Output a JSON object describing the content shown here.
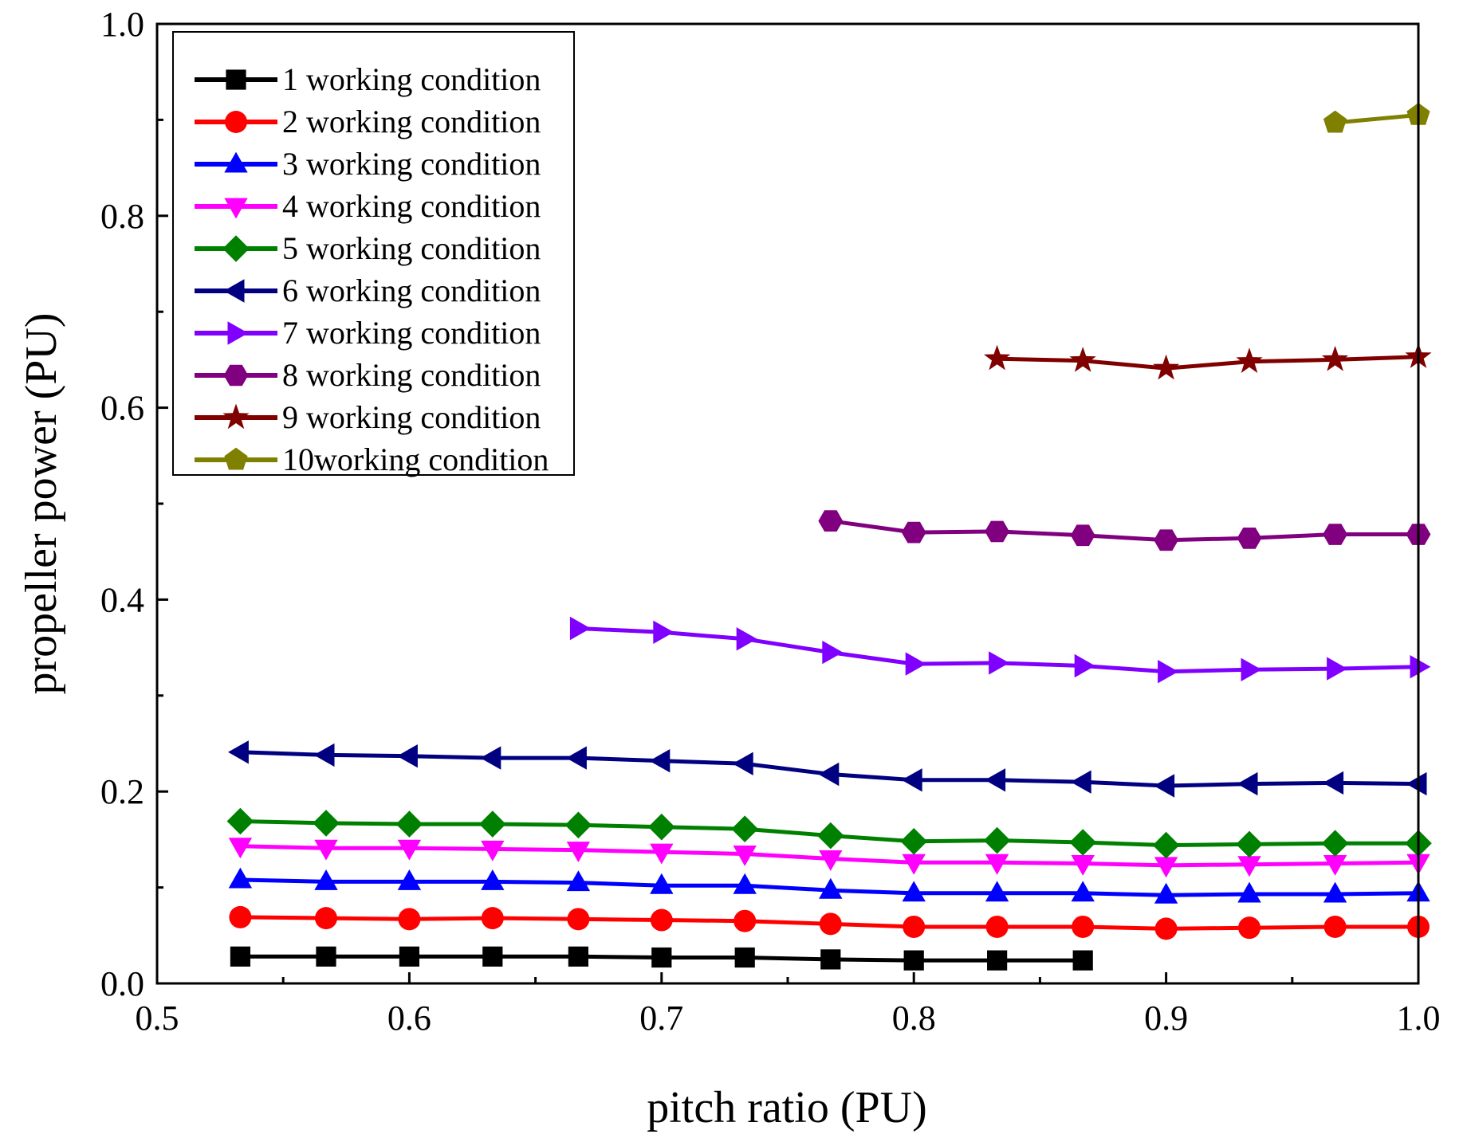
{
  "chart_data": {
    "type": "line",
    "title": "",
    "xlabel": "pitch ratio (PU)",
    "ylabel": "propeller power (PU)",
    "xlim": [
      0.5,
      1.0
    ],
    "ylim": [
      0.0,
      1.0
    ],
    "xticks": [
      0.5,
      0.6,
      0.7,
      0.8,
      0.9,
      1.0
    ],
    "xtick_labels": [
      "0.5",
      "0.6",
      "0.7",
      "0.8",
      "0.9",
      "1.0"
    ],
    "yticks": [
      0.0,
      0.2,
      0.4,
      0.6,
      0.8,
      1.0
    ],
    "ytick_labels": [
      "0.0",
      "0.2",
      "0.4",
      "0.6",
      "0.8",
      "1.0"
    ],
    "legend_position": "top-left",
    "grid": false,
    "series": [
      {
        "name": "1 working condition",
        "color": "#000000",
        "marker": "square",
        "x": [
          0.533,
          0.567,
          0.6,
          0.633,
          0.667,
          0.7,
          0.733,
          0.767,
          0.8,
          0.833,
          0.867
        ],
        "values": [
          0.028,
          0.028,
          0.028,
          0.028,
          0.028,
          0.027,
          0.027,
          0.025,
          0.024,
          0.024,
          0.024
        ]
      },
      {
        "name": "2 working condition",
        "color": "#ff0000",
        "marker": "circle",
        "x": [
          0.533,
          0.567,
          0.6,
          0.633,
          0.667,
          0.7,
          0.733,
          0.767,
          0.8,
          0.833,
          0.867,
          0.9,
          0.933,
          0.967,
          1.0
        ],
        "values": [
          0.069,
          0.068,
          0.067,
          0.068,
          0.067,
          0.066,
          0.065,
          0.062,
          0.059,
          0.059,
          0.059,
          0.057,
          0.058,
          0.059,
          0.059
        ]
      },
      {
        "name": "3 working condition",
        "color": "#0000ff",
        "marker": "triangle-up",
        "x": [
          0.533,
          0.567,
          0.6,
          0.633,
          0.667,
          0.7,
          0.733,
          0.767,
          0.8,
          0.833,
          0.867,
          0.9,
          0.933,
          0.967,
          1.0
        ],
        "values": [
          0.108,
          0.106,
          0.106,
          0.106,
          0.105,
          0.102,
          0.102,
          0.097,
          0.094,
          0.094,
          0.094,
          0.092,
          0.093,
          0.093,
          0.094
        ]
      },
      {
        "name": "4 working condition",
        "color": "#ff00ff",
        "marker": "triangle-down",
        "x": [
          0.533,
          0.567,
          0.6,
          0.633,
          0.667,
          0.7,
          0.733,
          0.767,
          0.8,
          0.833,
          0.867,
          0.9,
          0.933,
          0.967,
          1.0
        ],
        "values": [
          0.143,
          0.141,
          0.141,
          0.14,
          0.139,
          0.137,
          0.135,
          0.13,
          0.126,
          0.126,
          0.125,
          0.123,
          0.124,
          0.125,
          0.126
        ]
      },
      {
        "name": "5 working condition",
        "color": "#008000",
        "marker": "diamond",
        "x": [
          0.533,
          0.567,
          0.6,
          0.633,
          0.667,
          0.7,
          0.733,
          0.767,
          0.8,
          0.833,
          0.867,
          0.9,
          0.933,
          0.967,
          1.0
        ],
        "values": [
          0.169,
          0.167,
          0.166,
          0.166,
          0.165,
          0.163,
          0.161,
          0.154,
          0.148,
          0.149,
          0.147,
          0.144,
          0.145,
          0.146,
          0.146
        ]
      },
      {
        "name": "6 working condition",
        "color": "#000080",
        "marker": "triangle-left",
        "x": [
          0.533,
          0.567,
          0.6,
          0.633,
          0.667,
          0.7,
          0.733,
          0.767,
          0.8,
          0.833,
          0.867,
          0.9,
          0.933,
          0.967,
          1.0
        ],
        "values": [
          0.241,
          0.238,
          0.237,
          0.235,
          0.235,
          0.232,
          0.229,
          0.218,
          0.212,
          0.212,
          0.21,
          0.206,
          0.208,
          0.209,
          0.208
        ]
      },
      {
        "name": "7 working condition",
        "color": "#8000ff",
        "marker": "triangle-right",
        "x": [
          0.667,
          0.7,
          0.733,
          0.767,
          0.8,
          0.833,
          0.867,
          0.9,
          0.933,
          0.967,
          1.0
        ],
        "values": [
          0.37,
          0.366,
          0.359,
          0.345,
          0.333,
          0.334,
          0.331,
          0.325,
          0.327,
          0.328,
          0.33
        ]
      },
      {
        "name": "8 working condition",
        "color": "#800080",
        "marker": "hexagon",
        "x": [
          0.767,
          0.8,
          0.833,
          0.867,
          0.9,
          0.933,
          0.967,
          1.0
        ],
        "values": [
          0.482,
          0.47,
          0.471,
          0.467,
          0.462,
          0.464,
          0.468,
          0.468
        ]
      },
      {
        "name": "9 working condition",
        "color": "#800000",
        "marker": "star",
        "x": [
          0.833,
          0.867,
          0.9,
          0.933,
          0.967,
          1.0
        ],
        "values": [
          0.651,
          0.649,
          0.641,
          0.648,
          0.65,
          0.653
        ]
      },
      {
        "name": "10working condition",
        "color": "#808000",
        "marker": "pentagon",
        "x": [
          0.967,
          1.0
        ],
        "values": [
          0.897,
          0.905
        ]
      }
    ]
  }
}
